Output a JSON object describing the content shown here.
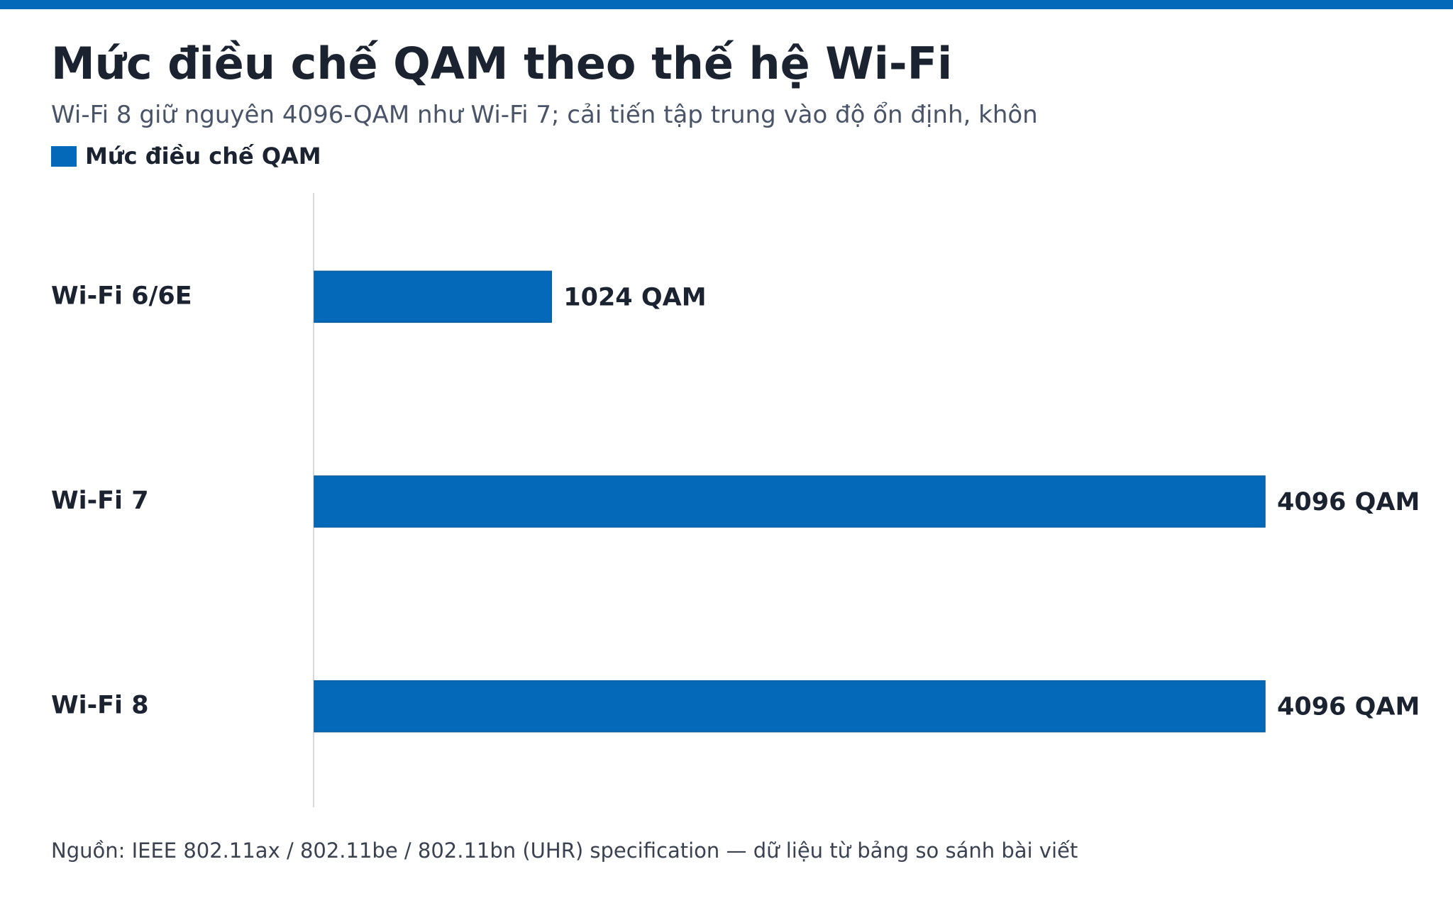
{
  "header": {
    "title": "Mức điều chế QAM theo thế hệ Wi-Fi",
    "subtitle": "Wi-Fi 8 giữ nguyên 4096-QAM như Wi-Fi 7; cải tiến tập trung vào độ ổn định, khôn"
  },
  "legend": {
    "label": "Mức điều chế QAM"
  },
  "colors": {
    "accent": "#0369b8",
    "axis": "#d5d8de",
    "text": "#1b2230"
  },
  "chart_data": {
    "type": "bar",
    "orientation": "horizontal",
    "categories": [
      "Wi-Fi 6/6E",
      "Wi-Fi 7",
      "Wi-Fi 8"
    ],
    "series": [
      {
        "name": "Mức điều chế QAM",
        "values": [
          1024,
          4096,
          4096
        ]
      }
    ],
    "data_labels": [
      "1024 QAM",
      "4096 QAM",
      "4096 QAM"
    ],
    "xlim": [
      0,
      4096
    ],
    "grid": false,
    "legend_position": "top-left"
  },
  "footer": {
    "source": "Nguồn: IEEE 802.11ax / 802.11be / 802.11bn (UHR) specification — dữ liệu từ bảng so sánh bài viết"
  }
}
